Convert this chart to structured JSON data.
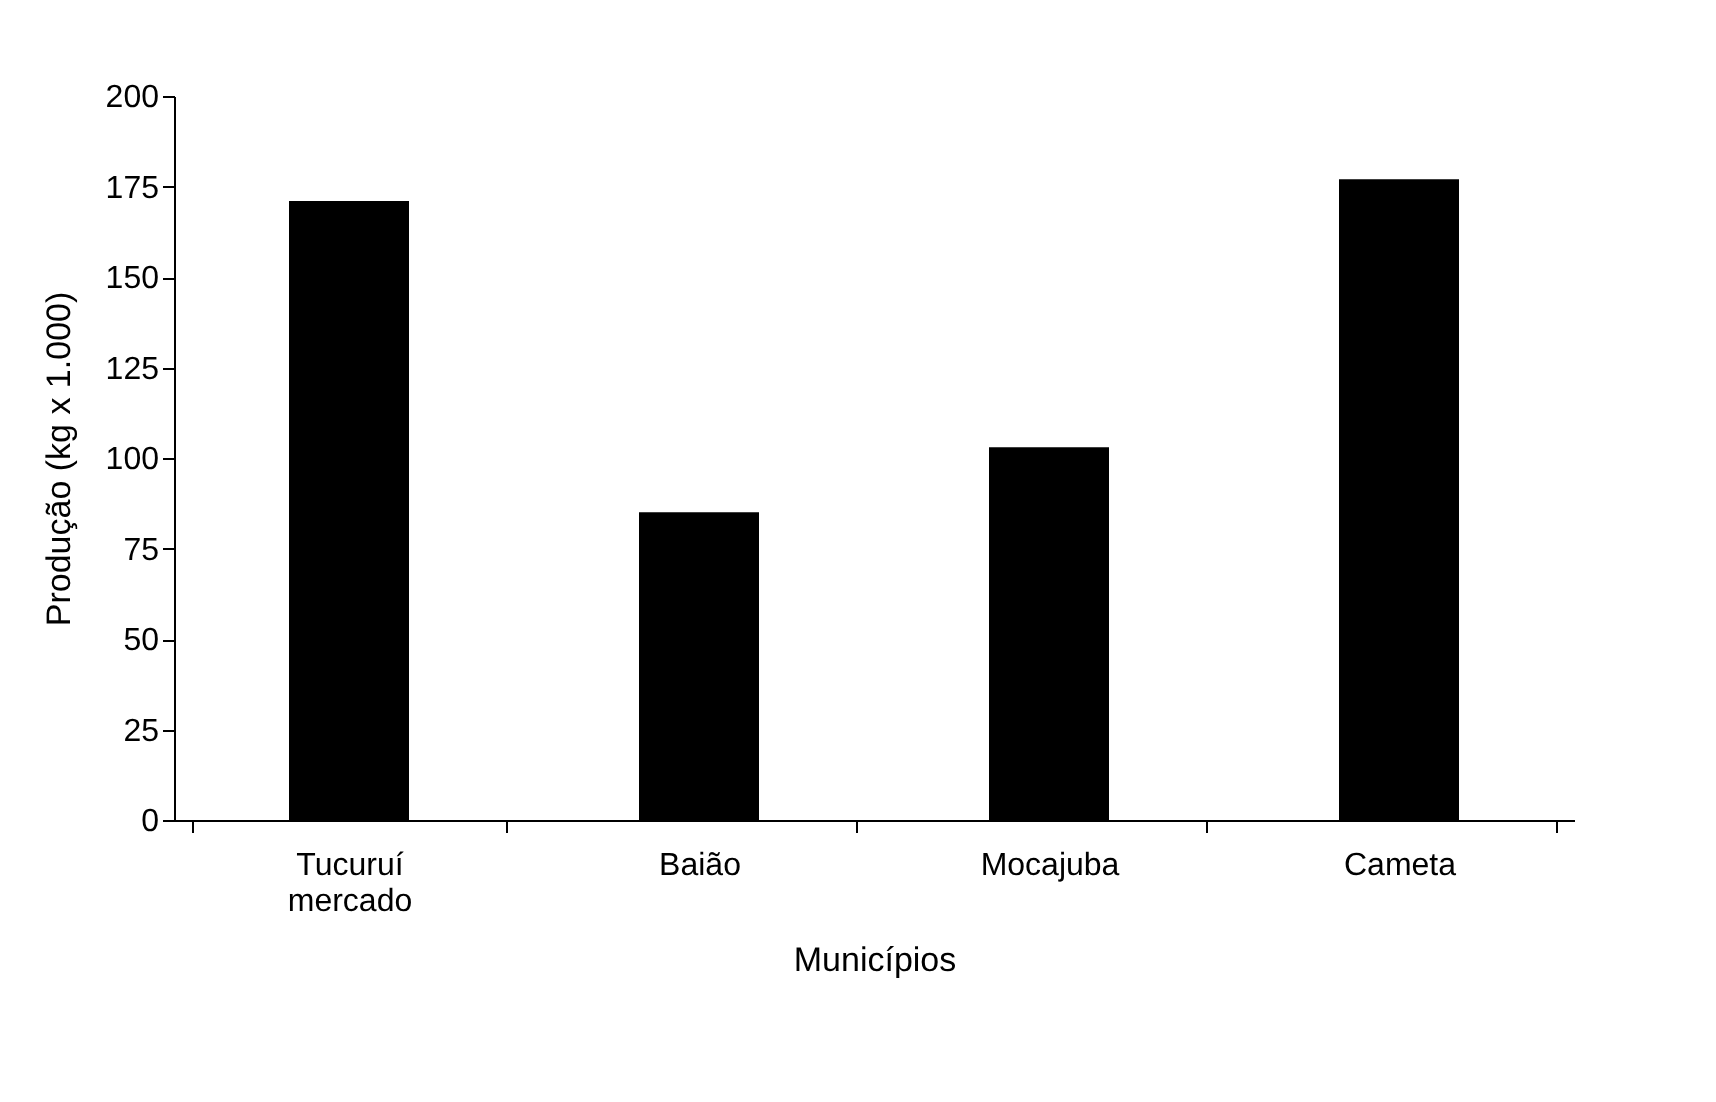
{
  "chart_data": {
    "type": "bar",
    "xlabel": "Municípios",
    "ylabel": "Produção (kg x 1.000)",
    "categories": [
      "Tucuruí mercado",
      "Baião",
      "Mocajuba",
      "Cameta"
    ],
    "values": [
      171,
      85,
      103,
      177
    ],
    "color": "#000000",
    "ylim": [
      0,
      200
    ],
    "yticks": [
      0,
      25,
      50,
      75,
      100,
      125,
      150,
      175,
      200
    ],
    "grid": false
  }
}
